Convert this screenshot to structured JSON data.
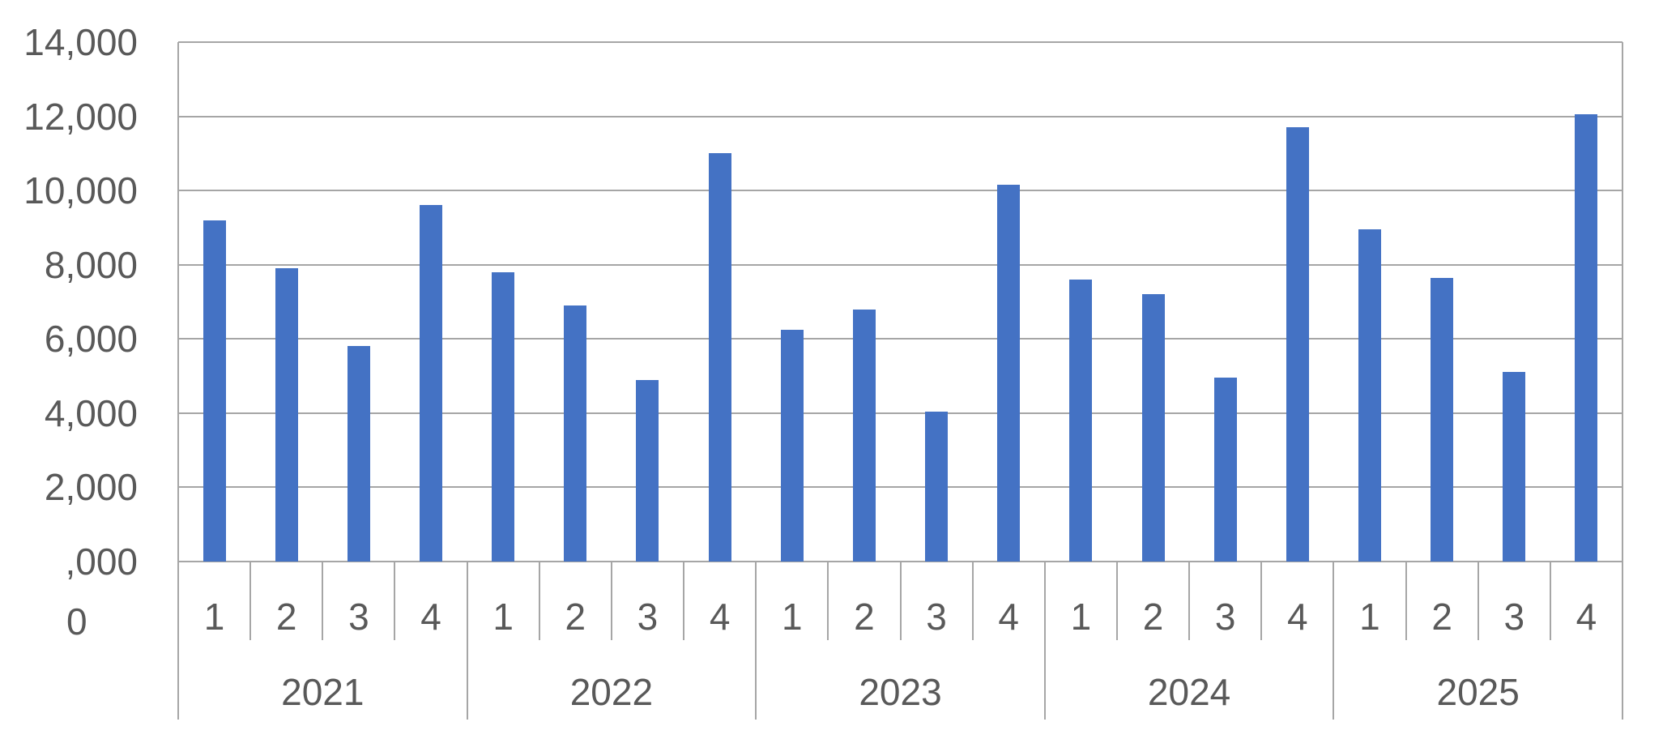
{
  "chart_data": {
    "type": "bar",
    "title": "",
    "legend": "none",
    "grid": true,
    "series": [
      {
        "name": "",
        "values": [
          9200,
          7900,
          5800,
          9600,
          7800,
          6900,
          4900,
          11000,
          6250,
          6800,
          4050,
          10150,
          7600,
          7200,
          4950,
          11700,
          8950,
          7650,
          5100,
          12050
        ]
      }
    ],
    "x_axis": {
      "years": [
        "2021",
        "2022",
        "2023",
        "2024",
        "2025"
      ],
      "quarter_labels": [
        "1",
        "2",
        "3",
        "4"
      ]
    },
    "y_axis": {
      "min": 0,
      "max": 14000,
      "major_unit": 2000,
      "tick_values": [
        14000,
        12000,
        10000,
        8000,
        6000,
        4000,
        2000,
        0
      ],
      "tick_labels": [
        "14,000",
        "12,000",
        "10,000",
        "8,000",
        "6,000",
        "4,000",
        "2,000",
        ",000"
      ],
      "clipped_partial_label": "0"
    },
    "colors": {
      "bar": "#4472C4",
      "gridline": "#A6A6A6",
      "axis_line": "#A6A6A6",
      "text": "#595959",
      "background": "#FFFFFF"
    }
  }
}
